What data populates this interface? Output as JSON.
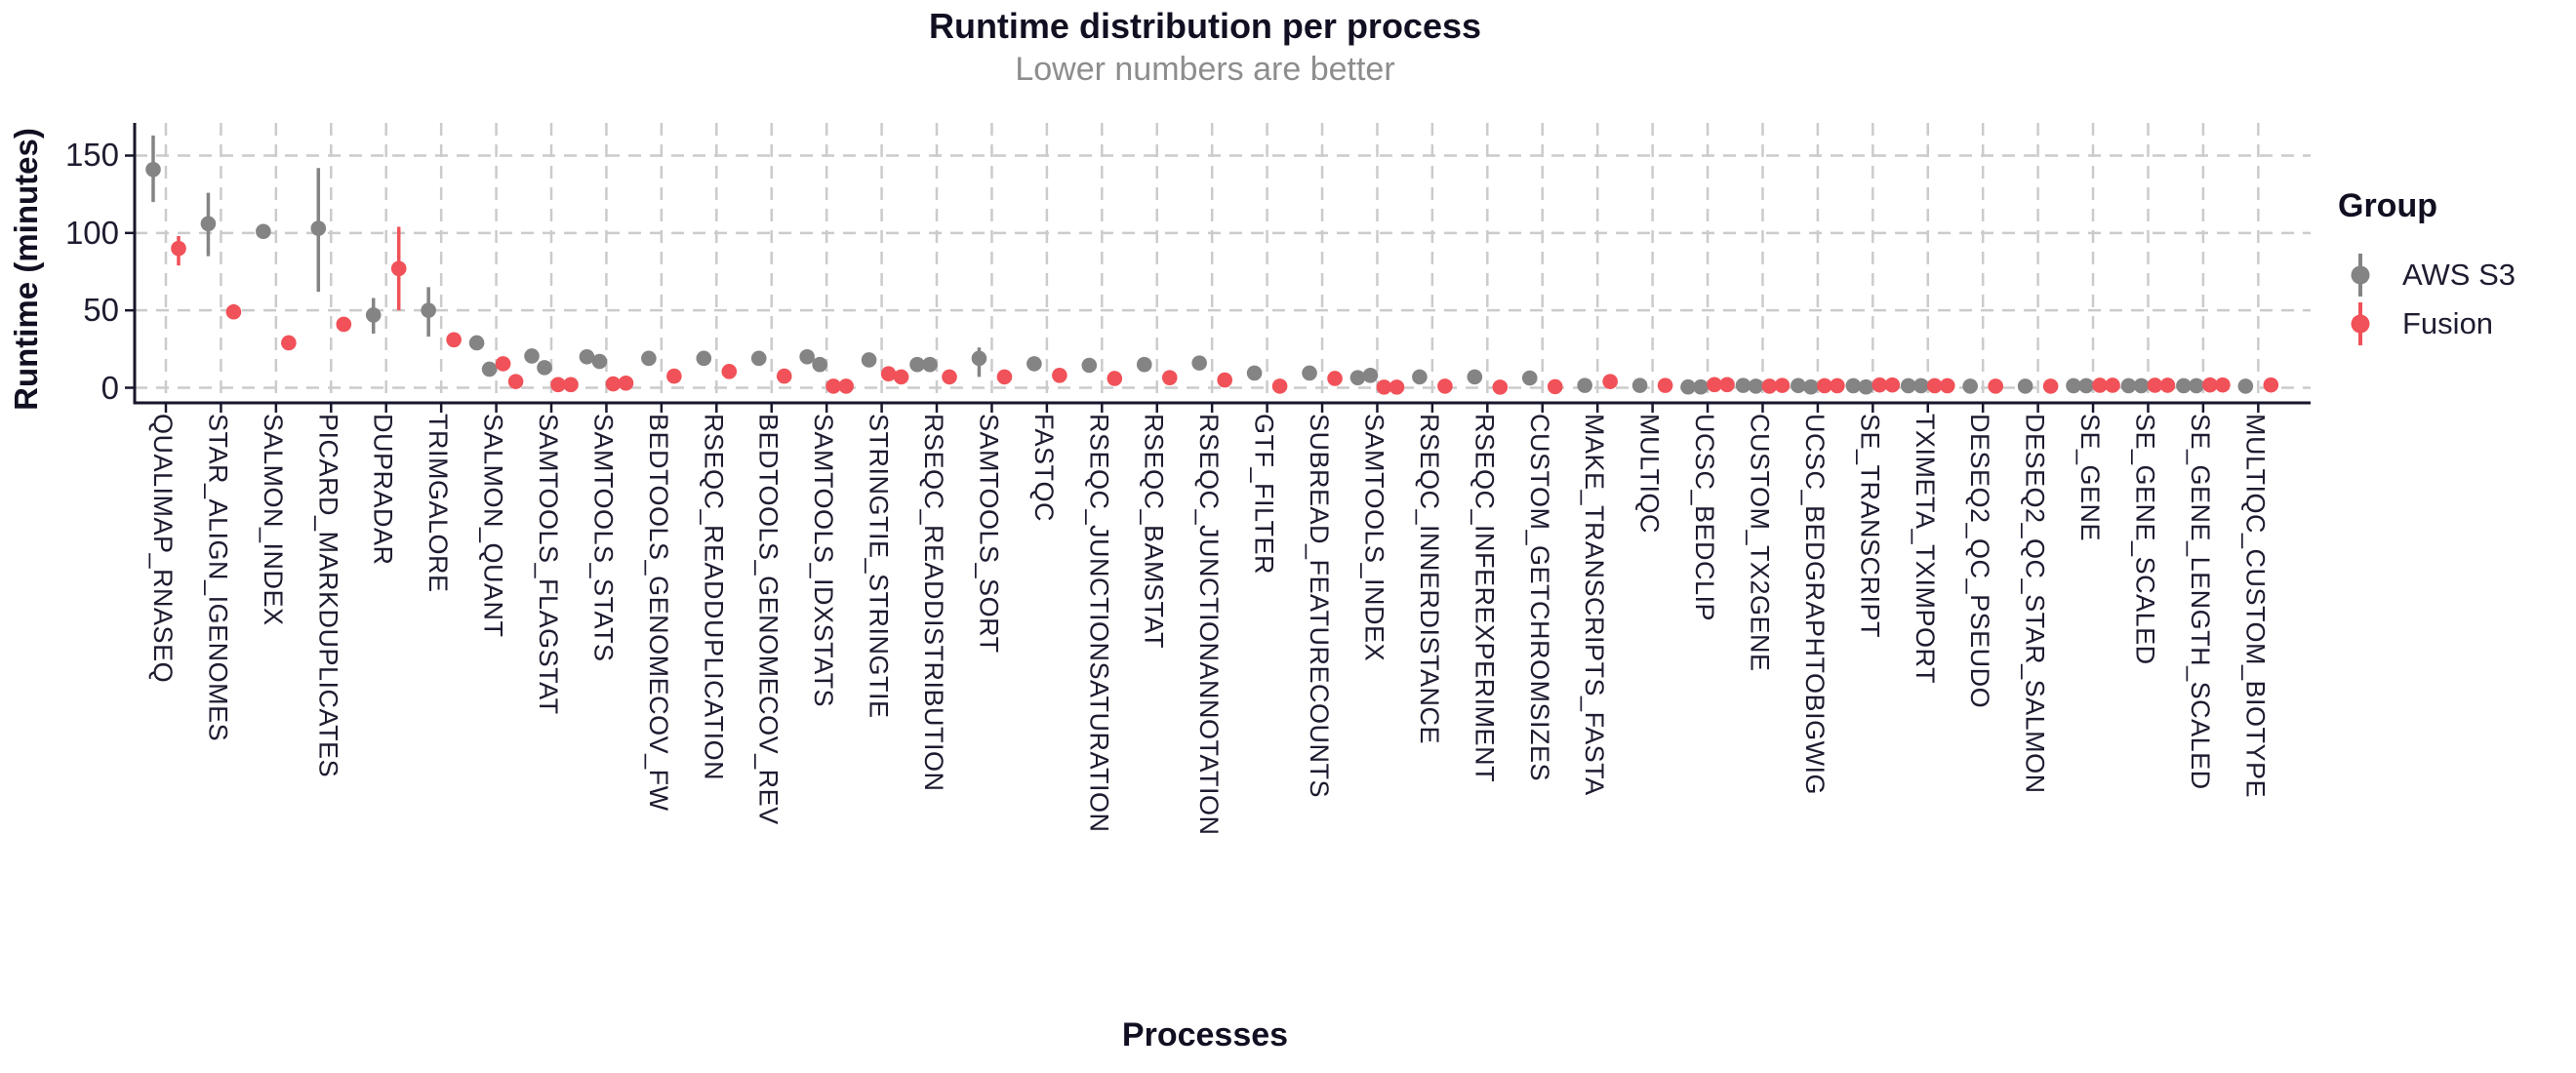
{
  "title": "Runtime distribution per process",
  "subtitle": "Lower numbers are better",
  "x_axis_label": "Processes",
  "y_axis_label": "Runtime (minutes)",
  "legend": {
    "title": "Group",
    "entries": [
      {
        "label": "AWS S3",
        "color": "#848484"
      },
      {
        "label": "Fusion",
        "color": "#F15158"
      }
    ]
  },
  "colors": {
    "aws": "#848484",
    "fusion": "#F15158",
    "grid": "#CBCBCB",
    "axis": "#17162B",
    "text": "#1D1C30",
    "subtitle": "#8D8D8D"
  },
  "chart_data": {
    "type": "scatter",
    "subtype": "pointrange-dodged",
    "title": "Runtime distribution per process",
    "subtitle": "Lower numbers are better",
    "xlabel": "Processes",
    "ylabel": "Runtime (minutes)",
    "y_ticks": [
      0,
      50,
      100,
      150
    ],
    "ylim": [
      -8,
      172
    ],
    "grid": "dashed-both-axes",
    "legend_position": "right",
    "series_names": [
      "AWS S3",
      "Fusion"
    ],
    "units": "minutes",
    "processes": [
      {
        "name": "QUALIMAP_RNASEQ",
        "aws": [
          141
        ],
        "aws_range": [
          120,
          163
        ],
        "fusion": [
          90
        ],
        "fusion_range": [
          79,
          98
        ]
      },
      {
        "name": "STAR_ALIGN_IGENOMES",
        "aws": [
          106
        ],
        "aws_range": [
          85,
          126
        ],
        "fusion": [
          49
        ],
        "fusion_range": [
          45,
          54
        ]
      },
      {
        "name": "SALMON_INDEX",
        "aws": [
          101
        ],
        "fusion": [
          29
        ]
      },
      {
        "name": "PICARD_MARKDUPLICATES",
        "aws": [
          103
        ],
        "aws_range": [
          62,
          142
        ],
        "fusion": [
          41
        ]
      },
      {
        "name": "DUPRADAR",
        "aws": [
          47
        ],
        "aws_range": [
          35,
          58
        ],
        "fusion": [
          77
        ],
        "fusion_range": [
          50,
          104
        ]
      },
      {
        "name": "TRIMGALORE",
        "aws": [
          50
        ],
        "aws_range": [
          33,
          65
        ],
        "fusion": [
          31
        ]
      },
      {
        "name": "SALMON_QUANT",
        "aws": [
          29,
          12
        ],
        "fusion": [
          15.5,
          4
        ]
      },
      {
        "name": "SAMTOOLS_FLAGSTAT",
        "aws": [
          20.5,
          13
        ],
        "fusion": [
          2,
          2
        ]
      },
      {
        "name": "SAMTOOLS_STATS",
        "aws": [
          20,
          17
        ],
        "fusion": [
          2.5,
          3
        ]
      },
      {
        "name": "BEDTOOLS_GENOMECOV_FW",
        "aws": [
          19
        ],
        "fusion": [
          7.5
        ]
      },
      {
        "name": "RSEQC_READDUPLICATION",
        "aws": [
          19
        ],
        "fusion": [
          10.5
        ]
      },
      {
        "name": "BEDTOOLS_GENOMECOV_REV",
        "aws": [
          19
        ],
        "fusion": [
          7.5
        ]
      },
      {
        "name": "SAMTOOLS_IDXSTATS",
        "aws": [
          20,
          15
        ],
        "fusion": [
          1,
          1
        ]
      },
      {
        "name": "STRINGTIE_STRINGTIE",
        "aws": [
          18
        ],
        "fusion": [
          9,
          7
        ]
      },
      {
        "name": "RSEQC_READDISTRIBUTION",
        "aws": [
          15,
          15
        ],
        "fusion": [
          7
        ]
      },
      {
        "name": "SAMTOOLS_SORT",
        "aws": [
          19
        ],
        "aws_range": [
          7,
          26
        ],
        "fusion": [
          7
        ]
      },
      {
        "name": "FASTQC",
        "aws": [
          15.5
        ],
        "fusion": [
          8
        ]
      },
      {
        "name": "RSEQC_JUNCTIONSATURATION",
        "aws": [
          14.5
        ],
        "fusion": [
          6
        ]
      },
      {
        "name": "RSEQC_BAMSTAT",
        "aws": [
          15
        ],
        "fusion": [
          6.5
        ]
      },
      {
        "name": "RSEQC_JUNCTIONANNOTATION",
        "aws": [
          16
        ],
        "fusion": [
          5
        ]
      },
      {
        "name": "GTF_FILTER",
        "aws": [
          9.5
        ],
        "fusion": [
          1
        ]
      },
      {
        "name": "SUBREAD_FEATURECOUNTS",
        "aws": [
          9.5
        ],
        "fusion": [
          6
        ]
      },
      {
        "name": "SAMTOOLS_INDEX",
        "aws": [
          6.5,
          8
        ],
        "fusion": [
          0.4,
          0.4
        ]
      },
      {
        "name": "RSEQC_INNERDISTANCE",
        "aws": [
          7
        ],
        "fusion": [
          1
        ]
      },
      {
        "name": "RSEQC_INFEREXPERIMENT",
        "aws": [
          7
        ],
        "fusion": [
          0.4
        ]
      },
      {
        "name": "CUSTOM_GETCHROMSIZES",
        "aws": [
          6.3
        ],
        "fusion": [
          0.7
        ]
      },
      {
        "name": "MAKE_TRANSCRIPTS_FASTA",
        "aws": [
          1.5
        ],
        "fusion": [
          4
        ]
      },
      {
        "name": "MULTIQC",
        "aws": [
          1.5
        ],
        "fusion": [
          1.5
        ]
      },
      {
        "name": "UCSC_BEDCLIP",
        "aws": [
          0.5,
          0.5
        ],
        "fusion": [
          2,
          2
        ]
      },
      {
        "name": "CUSTOM_TX2GENE",
        "aws": [
          1.5,
          1
        ],
        "fusion": [
          1,
          1.5
        ]
      },
      {
        "name": "UCSC_BEDGRAPHTOBIGWIG",
        "aws": [
          1.4,
          0.5
        ],
        "fusion": [
          1.3,
          1.3
        ]
      },
      {
        "name": "SE_TRANSCRIPT",
        "aws": [
          1.3,
          0.5
        ],
        "fusion": [
          1.8,
          1.8
        ]
      },
      {
        "name": "TXIMETA_TXIMPORT",
        "aws": [
          1.3,
          1.3
        ],
        "fusion": [
          1.3,
          1.3
        ]
      },
      {
        "name": "DESEQ2_QC_PSEUDO",
        "aws": [
          1
        ],
        "fusion": [
          1
        ]
      },
      {
        "name": "DESEQ2_QC_STAR_SALMON",
        "aws": [
          1
        ],
        "fusion": [
          1
        ]
      },
      {
        "name": "SE_GENE",
        "aws": [
          1.3,
          1.3
        ],
        "fusion": [
          1.6,
          1.6
        ]
      },
      {
        "name": "SE_GENE_SCALED",
        "aws": [
          1.3,
          1.3
        ],
        "fusion": [
          1.6,
          1.6
        ]
      },
      {
        "name": "SE_GENE_LENGTH_SCALED",
        "aws": [
          1.3,
          1.3
        ],
        "fusion": [
          1.8,
          1.8
        ]
      },
      {
        "name": "MULTIQC_CUSTOM_BIOTYPE",
        "aws": [
          1
        ],
        "fusion": [
          1.8
        ]
      }
    ]
  }
}
